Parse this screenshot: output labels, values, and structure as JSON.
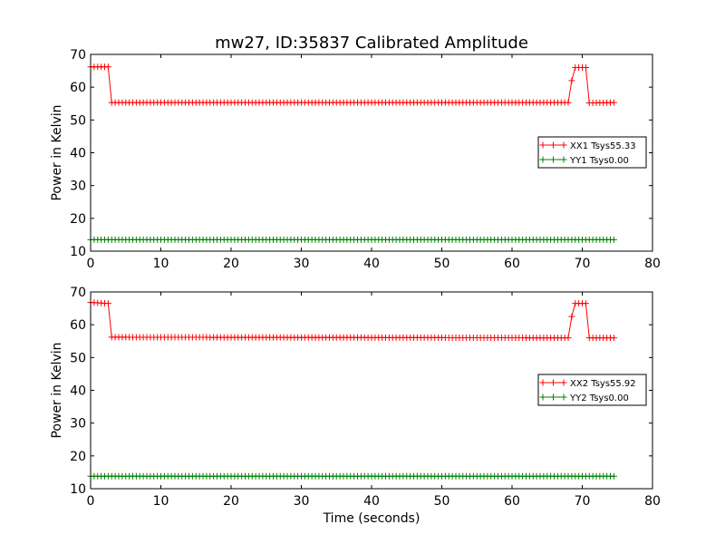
{
  "title": "mw27, ID:35837 Calibrated Amplitude",
  "colors": {
    "xx": "#ff0000",
    "yy": "#008000",
    "axes": "#000000"
  },
  "chart_data": [
    {
      "type": "line",
      "marker": "+",
      "xlim": [
        0,
        80
      ],
      "ylim": [
        10,
        70
      ],
      "xticks": [
        "0",
        "10",
        "20",
        "30",
        "40",
        "50",
        "60",
        "70",
        "80"
      ],
      "yticks": [
        "10",
        "20",
        "30",
        "40",
        "50",
        "60",
        "70"
      ],
      "xlabel": "",
      "ylabel": "Power in Kelvin",
      "legend_position": "right",
      "series": [
        {
          "name": "XX1 Tsys55.33",
          "color": "#ff0000",
          "points": [
            [
              0,
              66.2
            ],
            [
              2.5,
              66.2
            ],
            [
              3.0,
              55.3
            ],
            [
              68.0,
              55.3
            ],
            [
              68.5,
              62.0
            ],
            [
              69.0,
              66.0
            ],
            [
              70.5,
              66.0
            ],
            [
              71.0,
              55.2
            ],
            [
              74.5,
              55.3
            ]
          ],
          "marker_step": 0.5,
          "marker_range": [
            0,
            74.5
          ]
        },
        {
          "name": "YY1 Tsys0.00",
          "color": "#008000",
          "points": [
            [
              0,
              13.5
            ],
            [
              74.5,
              13.5
            ]
          ],
          "marker_step": 0.5,
          "marker_range": [
            0,
            74.5
          ]
        }
      ]
    },
    {
      "type": "line",
      "marker": "+",
      "xlim": [
        0,
        80
      ],
      "ylim": [
        10,
        70
      ],
      "xticks": [
        "0",
        "10",
        "20",
        "30",
        "40",
        "50",
        "60",
        "70",
        "80"
      ],
      "yticks": [
        "10",
        "20",
        "30",
        "40",
        "50",
        "60",
        "70"
      ],
      "xlabel": "Time (seconds)",
      "ylabel": "Power in Kelvin",
      "legend_position": "right",
      "series": [
        {
          "name": "XX2 Tsys55.92",
          "color": "#ff0000",
          "points": [
            [
              0,
              66.8
            ],
            [
              2.5,
              66.5
            ],
            [
              3.0,
              56.2
            ],
            [
              68.0,
              56.0
            ],
            [
              68.5,
              62.5
            ],
            [
              69.0,
              66.5
            ],
            [
              70.5,
              66.5
            ],
            [
              71.0,
              56.0
            ],
            [
              74.5,
              56.0
            ]
          ],
          "marker_step": 0.5,
          "marker_range": [
            0,
            74.5
          ]
        },
        {
          "name": "YY2 Tsys0.00",
          "color": "#008000",
          "points": [
            [
              0,
              13.8
            ],
            [
              74.5,
              13.8
            ]
          ],
          "marker_step": 0.5,
          "marker_range": [
            0,
            74.5
          ]
        }
      ]
    }
  ]
}
